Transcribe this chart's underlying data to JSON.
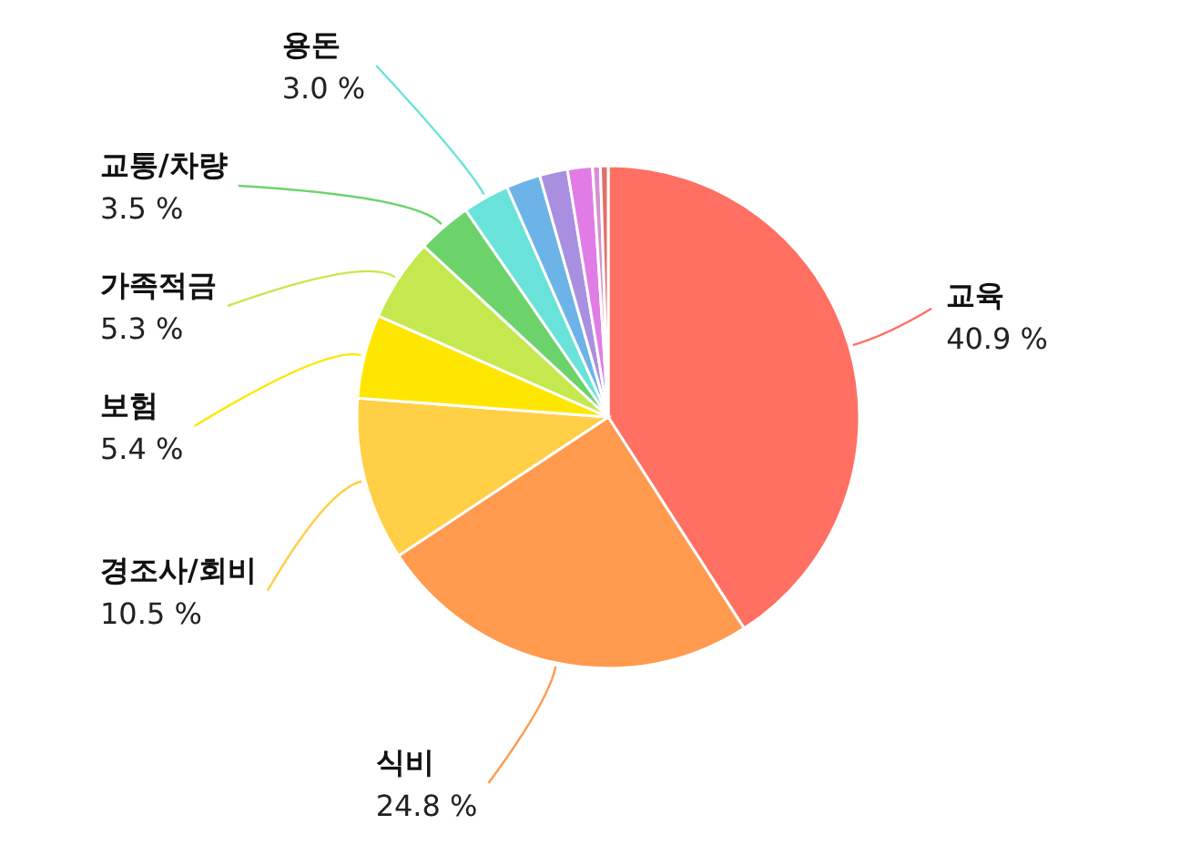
{
  "chart_data": {
    "type": "pie",
    "categories": [
      "교육",
      "식비",
      "경조사/회비",
      "보험",
      "가족적금",
      "교통/차량",
      "용돈",
      null,
      null,
      null,
      null,
      null
    ],
    "values": [
      40.9,
      24.8,
      10.5,
      5.4,
      5.3,
      3.5,
      3.0,
      2.2,
      1.8,
      1.6,
      0.5,
      0.5
    ],
    "value_labels": [
      "40.9 %",
      "24.8 %",
      "10.5 %",
      "5.4 %",
      "5.3 %",
      "3.5 %",
      "3.0 %",
      null,
      null,
      null,
      null,
      null
    ],
    "colors": [
      "#ff7063",
      "#ff9a4f",
      "#ffcf45",
      "#ffe600",
      "#c5e84f",
      "#6cd36a",
      "#69e3d9",
      "#6cb4e8",
      "#a98fe0",
      "#e17ce6",
      "#d890d0",
      "#e0706a"
    ],
    "legend": false
  }
}
